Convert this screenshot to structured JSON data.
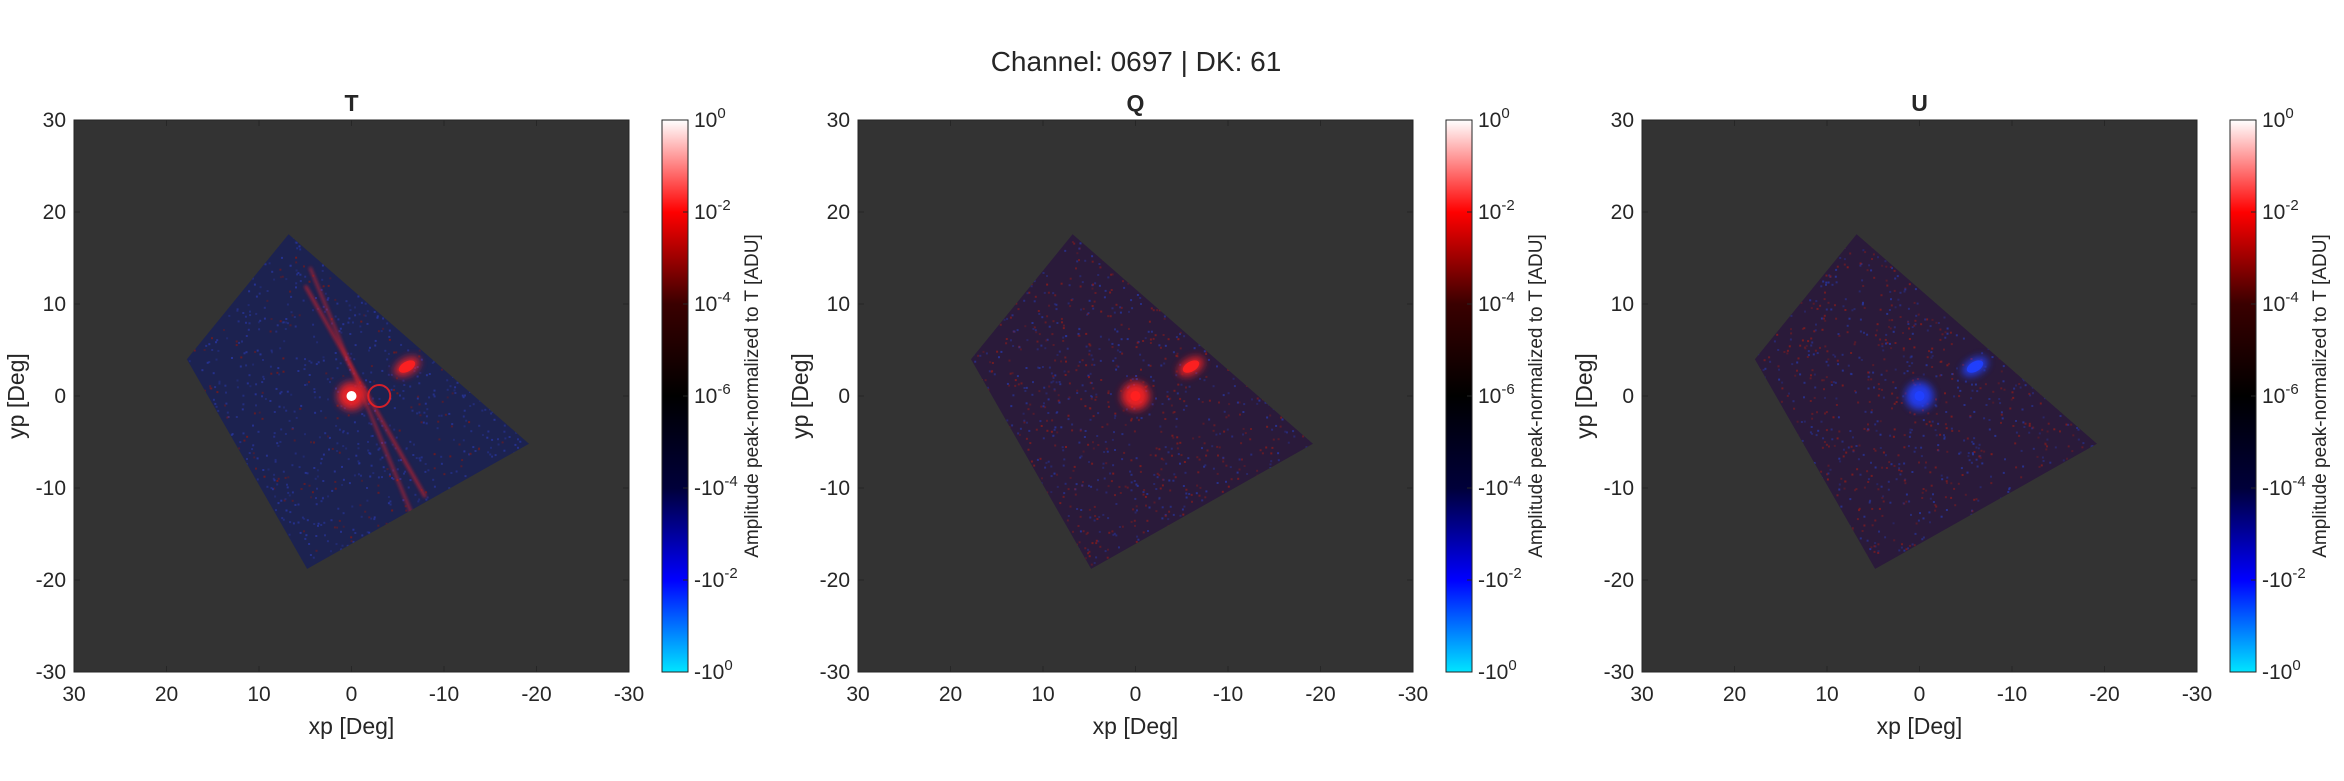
{
  "figure_title": "Channel: 0697 | DK: 61",
  "colorbar": {
    "label": "Amplitude peak-normalized to T [ADU]",
    "tick_labels": [
      {
        "base": "10",
        "exp": "0"
      },
      {
        "base": "10",
        "exp": "-2"
      },
      {
        "base": "10",
        "exp": "-4"
      },
      {
        "base": "10",
        "exp": "-6"
      },
      {
        "base": "-10",
        "exp": "-4"
      },
      {
        "base": "-10",
        "exp": "-2"
      },
      {
        "base": "-10",
        "exp": "0"
      }
    ],
    "colormap": [
      "#00e5ff",
      "#0000ff",
      "#00003a",
      "#000000",
      "#3a0000",
      "#ff0000",
      "#ffffff"
    ]
  },
  "colors": {
    "background": "#333333",
    "positive": "#ff2020",
    "negative": "#2040ff",
    "peak": "#ffffff"
  },
  "chart_data": [
    {
      "type": "heatmap",
      "title": "T",
      "xlabel": "xp [Deg]",
      "ylabel": "yp [Deg]",
      "xlim": [
        30,
        -30
      ],
      "ylim": [
        -30,
        30
      ],
      "xticks": [
        30,
        20,
        10,
        0,
        -10,
        -20,
        -30
      ],
      "yticks": [
        30,
        20,
        10,
        0,
        -10,
        -20,
        -30
      ],
      "x_reversed": true,
      "scan_region_corners": [
        [
          17.8,
          4.0
        ],
        [
          6.8,
          17.6
        ],
        [
          -19.2,
          -5.2
        ],
        [
          4.8,
          -18.8
        ]
      ],
      "features": [
        {
          "kind": "peak",
          "x": 0,
          "y": 0,
          "level": 1.0
        },
        {
          "kind": "ghost",
          "x": -6,
          "y": 3.2,
          "level": 0.01
        },
        {
          "kind": "ring",
          "x": -3,
          "y": 0,
          "level": 0.0001
        },
        {
          "kind": "stripe",
          "x1": 5,
          "y1": 12,
          "x2": -8,
          "y2": -11,
          "level": 0.001
        },
        {
          "kind": "stripe",
          "x1": 4.5,
          "y1": 14,
          "x2": -7,
          "y2": -14,
          "level": 0.0001
        }
      ],
      "background_sign": "negative"
    },
    {
      "type": "heatmap",
      "title": "Q",
      "xlabel": "xp [Deg]",
      "ylabel": "yp [Deg]",
      "xlim": [
        30,
        -30
      ],
      "ylim": [
        -30,
        30
      ],
      "xticks": [
        30,
        20,
        10,
        0,
        -10,
        -20,
        -30
      ],
      "yticks": [
        30,
        20,
        10,
        0,
        -10,
        -20,
        -30
      ],
      "x_reversed": true,
      "scan_region_corners": [
        [
          17.8,
          4.0
        ],
        [
          6.8,
          17.6
        ],
        [
          -19.2,
          -5.2
        ],
        [
          4.8,
          -18.8
        ]
      ],
      "features": [
        {
          "kind": "peak",
          "x": 0,
          "y": 0,
          "level": 0.1
        },
        {
          "kind": "ghost",
          "x": -6,
          "y": 3.2,
          "level": 0.01
        }
      ],
      "background_sign": "mixed"
    },
    {
      "type": "heatmap",
      "title": "U",
      "xlabel": "xp [Deg]",
      "ylabel": "yp [Deg]",
      "xlim": [
        30,
        -30
      ],
      "ylim": [
        -30,
        30
      ],
      "xticks": [
        30,
        20,
        10,
        0,
        -10,
        -20,
        -30
      ],
      "yticks": [
        30,
        20,
        10,
        0,
        -10,
        -20,
        -30
      ],
      "x_reversed": true,
      "scan_region_corners": [
        [
          17.8,
          4.0
        ],
        [
          6.8,
          17.6
        ],
        [
          -19.2,
          -5.2
        ],
        [
          4.8,
          -18.8
        ]
      ],
      "features": [
        {
          "kind": "peak",
          "x": 0,
          "y": 0,
          "level": -0.01
        },
        {
          "kind": "ghost",
          "x": -6,
          "y": 3.2,
          "level": -0.001
        }
      ],
      "background_sign": "mixed"
    }
  ]
}
